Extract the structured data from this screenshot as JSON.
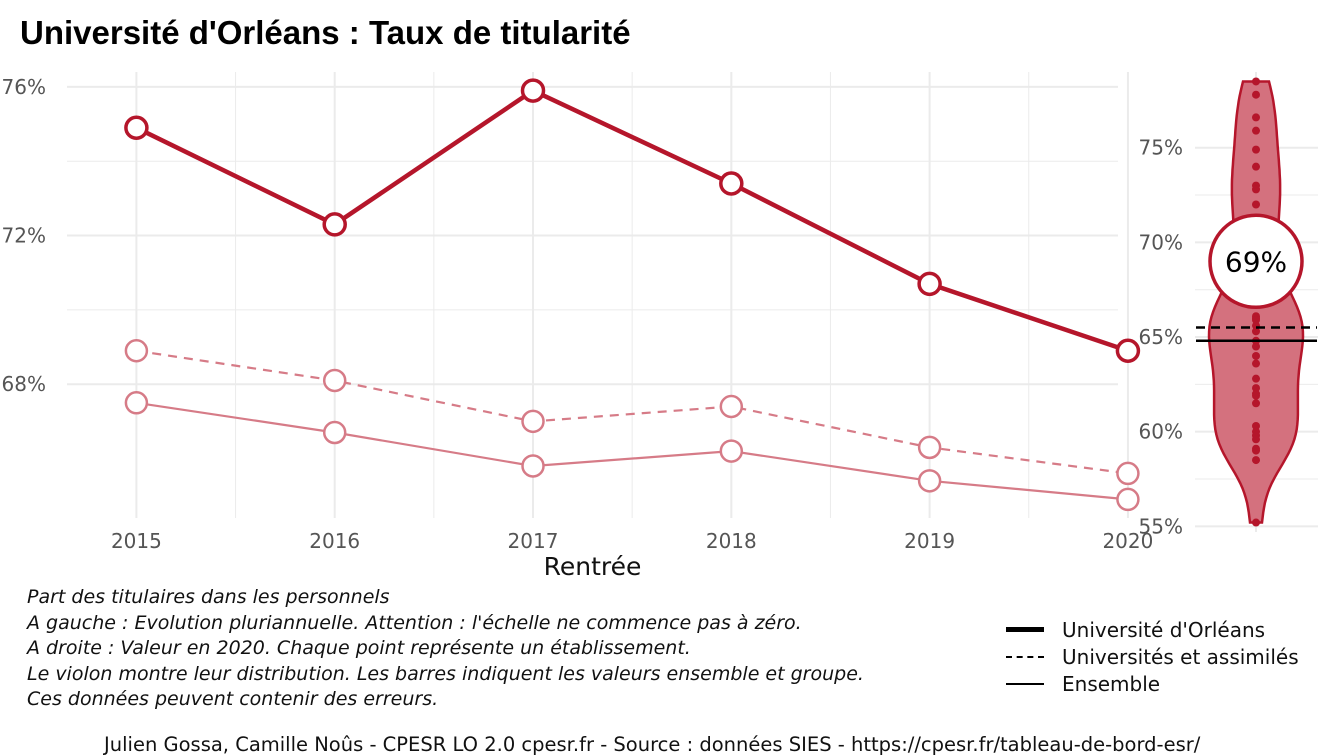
{
  "title": "Université d'Orléans  :  Taux de titularité",
  "colors": {
    "accent": "#B5162B",
    "accent_light": "#D67B87",
    "violin_fill": "#D4717E",
    "grid": "#EBEBEB"
  },
  "chart_data": [
    {
      "type": "line",
      "xlabel": "Rentrée",
      "ylabel": "",
      "categories": [
        "2015",
        "2016",
        "2017",
        "2018",
        "2019",
        "2020"
      ],
      "y_ticks": [
        68,
        72,
        76
      ],
      "y_tick_labels": [
        "68%",
        "72%",
        "76%"
      ],
      "ylim": [
        64.4,
        76.4
      ],
      "grid": true,
      "series": [
        {
          "name": "Université d'Orléans",
          "style": "solid-thick",
          "values": [
            74.9,
            72.3,
            75.9,
            73.4,
            70.7,
            68.9
          ]
        },
        {
          "name": "Universités et assimilés",
          "style": "dashed",
          "values": [
            68.9,
            68.1,
            67.0,
            67.4,
            66.3,
            65.6
          ]
        },
        {
          "name": "Ensemble",
          "style": "solid-thin",
          "values": [
            67.5,
            66.7,
            65.8,
            66.2,
            65.4,
            64.9
          ]
        }
      ]
    },
    {
      "type": "violin",
      "y_ticks": [
        55,
        60,
        65,
        70,
        75
      ],
      "y_tick_labels": [
        "55%",
        "60%",
        "65%",
        "70%",
        "75%"
      ],
      "ylim": [
        54.7,
        79.0
      ],
      "highlight_value": 69,
      "highlight_label": "69%",
      "reference_lines": {
        "Universités et assimilés": 65.5,
        "Ensemble": 64.8
      },
      "points": [
        78.5,
        77.8,
        76.6,
        75.9,
        74.9,
        74.0,
        73.0,
        72.8,
        72.0,
        71.0,
        70.1,
        69.3,
        68.2,
        67.2,
        66.7,
        66.1,
        66.0,
        65.9,
        65.6,
        65.3,
        64.8,
        64.5,
        64.0,
        63.6,
        62.8,
        62.3,
        62.0,
        61.9,
        61.5,
        60.3,
        60.0,
        59.8,
        59.6,
        59.1,
        59.0,
        58.5,
        55.2
      ]
    }
  ],
  "caption": {
    "lines": [
      "Part des titulaires dans les personnels",
      "A gauche : Evolution pluriannuelle. Attention : l'échelle ne commence pas à zéro.",
      "A droite : Valeur en 2020. Chaque point représente un établissement.",
      "Le violon montre leur distribution. Les barres indiquent les valeurs ensemble et groupe.",
      "Ces données peuvent contenir des erreurs."
    ]
  },
  "legend": {
    "items": [
      {
        "label": "Université d'Orléans",
        "style": "solid-thick"
      },
      {
        "label": "Universités et assimilés",
        "style": "dashed"
      },
      {
        "label": "Ensemble",
        "style": "solid-thin"
      }
    ]
  },
  "credit": "Julien Gossa, Camille Noûs - CPESR LO 2.0 cpesr.fr - Source : données SIES - https://cpesr.fr/tableau-de-bord-esr/"
}
